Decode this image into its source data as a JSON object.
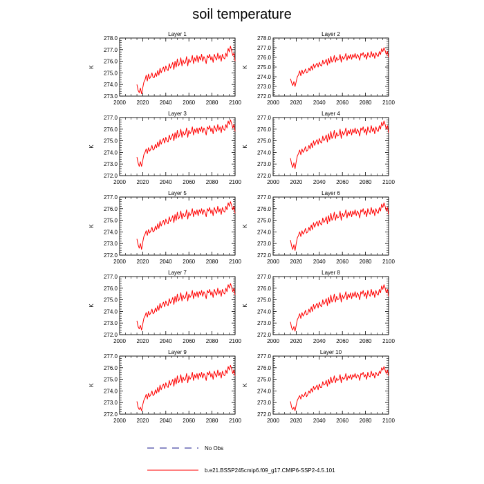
{
  "chart_data": {
    "type": "line",
    "title": "soil temperature",
    "ylabel": "K",
    "xlim": [
      2000,
      2100
    ],
    "xticks": [
      2000,
      2020,
      2040,
      2060,
      2080,
      2100
    ],
    "x": [
      2015,
      2016,
      2017,
      2018,
      2019,
      2020,
      2021,
      2022,
      2023,
      2024,
      2025,
      2026,
      2027,
      2028,
      2029,
      2030,
      2031,
      2032,
      2033,
      2034,
      2035,
      2036,
      2037,
      2038,
      2039,
      2040,
      2041,
      2042,
      2043,
      2044,
      2045,
      2046,
      2047,
      2048,
      2049,
      2050,
      2051,
      2052,
      2053,
      2054,
      2055,
      2056,
      2057,
      2058,
      2059,
      2060,
      2061,
      2062,
      2063,
      2064,
      2065,
      2066,
      2067,
      2068,
      2069,
      2070,
      2071,
      2072,
      2073,
      2074,
      2075,
      2076,
      2077,
      2078,
      2079,
      2080,
      2081,
      2082,
      2083,
      2084,
      2085,
      2086,
      2087,
      2088,
      2089,
      2090,
      2091,
      2092,
      2093,
      2094,
      2095,
      2096,
      2097,
      2098,
      2099,
      2100
    ],
    "legend": [
      {
        "label": "No Obs",
        "style": "dashed",
        "color": "#1a1a8c"
      },
      {
        "label": "b.e21.BSSP245cmip6.f09_g17.CMIP6-SSP2-4.5.101",
        "style": "solid",
        "color": "#ff0000"
      }
    ],
    "panels": [
      {
        "name": "Layer 1",
        "ylim": [
          273.0,
          278.0
        ],
        "yticks": [
          273.0,
          274.0,
          275.0,
          276.0,
          277.0,
          278.0
        ],
        "values": [
          274.0,
          273.5,
          273.3,
          273.7,
          273.2,
          273.7,
          274.2,
          274.4,
          274.8,
          274.3,
          274.9,
          274.5,
          274.7,
          275.0,
          274.6,
          274.6,
          275.0,
          274.7,
          275.2,
          274.8,
          275.4,
          275.0,
          275.3,
          275.5,
          275.1,
          275.6,
          275.3,
          275.2,
          275.8,
          275.4,
          275.6,
          275.9,
          275.3,
          276.0,
          275.5,
          276.2,
          275.6,
          275.8,
          276.3,
          275.6,
          276.1,
          275.8,
          275.9,
          276.4,
          275.6,
          276.2,
          275.9,
          276.1,
          276.5,
          275.8,
          276.3,
          276.0,
          276.5,
          275.9,
          276.4,
          276.1,
          276.6,
          276.0,
          276.4,
          276.2,
          275.8,
          276.5,
          276.3,
          276.6,
          276.1,
          276.4,
          275.9,
          276.6,
          276.3,
          276.1,
          276.7,
          276.2,
          276.5,
          276.0,
          276.6,
          276.3,
          276.2,
          276.7,
          276.4,
          277.1,
          276.8,
          277.3,
          276.9,
          276.5,
          276.7,
          276.0
        ]
      },
      {
        "name": "Layer 2",
        "ylim": [
          272.0,
          278.0
        ],
        "yticks": [
          272.0,
          273.0,
          274.0,
          275.0,
          276.0,
          277.0,
          278.0
        ],
        "values": [
          273.8,
          273.4,
          273.1,
          273.5,
          273.0,
          273.5,
          274.0,
          274.2,
          274.6,
          274.1,
          274.7,
          274.3,
          274.5,
          274.8,
          274.4,
          274.5,
          274.9,
          274.6,
          275.1,
          274.7,
          275.3,
          274.9,
          275.2,
          275.4,
          275.0,
          275.5,
          275.2,
          275.1,
          275.7,
          275.3,
          275.5,
          275.8,
          275.2,
          275.9,
          275.4,
          276.1,
          275.5,
          275.7,
          276.2,
          275.5,
          276.0,
          275.7,
          275.8,
          276.3,
          275.5,
          276.1,
          275.8,
          276.0,
          276.4,
          275.7,
          276.2,
          275.9,
          276.3,
          275.8,
          276.3,
          276.0,
          276.4,
          275.9,
          276.3,
          276.1,
          275.7,
          276.4,
          276.2,
          276.5,
          276.0,
          276.3,
          275.8,
          276.5,
          276.2,
          276.0,
          276.6,
          276.1,
          276.4,
          275.9,
          276.5,
          276.2,
          276.1,
          276.6,
          276.3,
          276.9,
          276.6,
          277.0,
          276.7,
          276.3,
          276.6,
          276.0
        ]
      },
      {
        "name": "Layer 3",
        "ylim": [
          272.0,
          277.0
        ],
        "yticks": [
          272.0,
          273.0,
          274.0,
          275.0,
          276.0,
          277.0
        ],
        "values": [
          273.6,
          273.1,
          272.8,
          273.2,
          272.8,
          273.3,
          273.8,
          274.0,
          274.3,
          273.9,
          274.4,
          274.1,
          274.3,
          274.6,
          274.2,
          274.3,
          274.7,
          274.4,
          274.9,
          274.5,
          275.1,
          274.7,
          275.0,
          275.2,
          274.8,
          275.3,
          275.0,
          274.9,
          275.5,
          275.1,
          275.3,
          275.6,
          275.0,
          275.7,
          275.2,
          275.9,
          275.3,
          275.5,
          276.0,
          275.3,
          275.8,
          275.5,
          275.6,
          276.1,
          275.3,
          275.9,
          275.6,
          275.8,
          276.2,
          275.5,
          276.0,
          275.7,
          276.1,
          275.6,
          276.1,
          275.8,
          276.2,
          275.7,
          276.1,
          275.9,
          275.5,
          276.2,
          276.0,
          276.3,
          275.8,
          276.1,
          275.6,
          276.3,
          276.0,
          275.8,
          276.4,
          275.9,
          276.2,
          275.7,
          276.3,
          276.0,
          275.9,
          276.4,
          276.1,
          276.7,
          276.4,
          276.8,
          276.5,
          276.1,
          276.4,
          275.8
        ]
      },
      {
        "name": "Layer 4",
        "ylim": [
          272.0,
          277.0
        ],
        "yticks": [
          272.0,
          273.0,
          274.0,
          275.0,
          276.0,
          277.0
        ],
        "values": [
          273.5,
          273.0,
          272.7,
          273.1,
          272.6,
          273.2,
          273.7,
          273.9,
          274.2,
          273.8,
          274.3,
          274.0,
          274.2,
          274.5,
          274.1,
          274.2,
          274.6,
          274.3,
          274.8,
          274.4,
          275.0,
          274.6,
          274.9,
          275.1,
          274.7,
          275.2,
          274.9,
          274.8,
          275.4,
          275.0,
          275.2,
          275.5,
          274.9,
          275.6,
          275.1,
          275.8,
          275.2,
          275.4,
          275.9,
          275.2,
          275.7,
          275.4,
          275.5,
          276.0,
          275.2,
          275.8,
          275.5,
          275.7,
          276.1,
          275.4,
          275.9,
          275.6,
          276.0,
          275.5,
          276.0,
          275.7,
          276.1,
          275.6,
          276.0,
          275.8,
          275.4,
          276.1,
          275.9,
          276.2,
          275.7,
          276.0,
          275.5,
          276.2,
          275.9,
          275.7,
          276.3,
          275.8,
          276.1,
          275.6,
          276.2,
          275.9,
          275.8,
          276.3,
          276.0,
          276.6,
          276.3,
          276.7,
          276.4,
          276.0,
          276.3,
          275.7
        ]
      },
      {
        "name": "Layer 5",
        "ylim": [
          272.0,
          277.0
        ],
        "yticks": [
          272.0,
          273.0,
          274.0,
          275.0,
          276.0,
          277.0
        ],
        "values": [
          273.4,
          272.9,
          272.6,
          273.0,
          272.5,
          273.1,
          273.6,
          273.8,
          274.1,
          273.7,
          274.2,
          273.9,
          274.1,
          274.4,
          274.0,
          274.1,
          274.5,
          274.2,
          274.7,
          274.3,
          274.9,
          274.5,
          274.8,
          275.0,
          274.6,
          275.1,
          274.8,
          274.7,
          275.3,
          274.9,
          275.1,
          275.4,
          274.8,
          275.5,
          275.0,
          275.7,
          275.1,
          275.3,
          275.8,
          275.1,
          275.6,
          275.3,
          275.4,
          275.9,
          275.1,
          275.7,
          275.4,
          275.6,
          276.0,
          275.3,
          275.8,
          275.5,
          275.9,
          275.4,
          275.9,
          275.6,
          276.0,
          275.5,
          275.9,
          275.7,
          275.3,
          276.0,
          275.8,
          276.1,
          275.6,
          275.9,
          275.4,
          276.1,
          275.8,
          275.6,
          276.2,
          275.7,
          276.0,
          275.5,
          276.1,
          275.8,
          275.7,
          276.2,
          275.9,
          276.5,
          276.2,
          276.6,
          276.3,
          275.9,
          276.2,
          275.6
        ]
      },
      {
        "name": "Layer 6",
        "ylim": [
          272.0,
          277.0
        ],
        "yticks": [
          272.0,
          273.0,
          274.0,
          275.0,
          276.0,
          277.0
        ],
        "values": [
          273.3,
          272.8,
          272.5,
          272.9,
          272.4,
          273.0,
          273.5,
          273.7,
          274.0,
          273.6,
          274.1,
          273.8,
          274.0,
          274.3,
          273.9,
          274.0,
          274.4,
          274.1,
          274.6,
          274.2,
          274.8,
          274.4,
          274.7,
          274.9,
          274.5,
          275.0,
          274.7,
          274.6,
          275.2,
          274.8,
          275.0,
          275.3,
          274.7,
          275.4,
          274.9,
          275.6,
          275.0,
          275.2,
          275.7,
          275.0,
          275.5,
          275.2,
          275.3,
          275.8,
          275.0,
          275.6,
          275.3,
          275.5,
          275.9,
          275.2,
          275.7,
          275.4,
          275.8,
          275.3,
          275.8,
          275.5,
          275.9,
          275.4,
          275.8,
          275.6,
          275.2,
          275.9,
          275.7,
          276.0,
          275.5,
          275.8,
          275.3,
          276.0,
          275.7,
          275.5,
          276.1,
          275.6,
          275.9,
          275.4,
          276.0,
          275.7,
          275.6,
          276.1,
          275.8,
          276.4,
          276.1,
          276.5,
          276.2,
          275.8,
          276.1,
          275.5
        ]
      },
      {
        "name": "Layer 7",
        "ylim": [
          272.0,
          277.0
        ],
        "yticks": [
          272.0,
          273.0,
          274.0,
          275.0,
          276.0,
          277.0
        ],
        "values": [
          273.2,
          272.7,
          272.5,
          272.8,
          272.4,
          272.9,
          273.4,
          273.6,
          273.9,
          273.5,
          274.0,
          273.7,
          273.9,
          274.2,
          273.8,
          273.9,
          274.3,
          274.0,
          274.5,
          274.1,
          274.7,
          274.3,
          274.6,
          274.8,
          274.4,
          274.9,
          274.6,
          274.5,
          275.1,
          274.7,
          274.9,
          275.2,
          274.6,
          275.3,
          274.8,
          275.5,
          274.9,
          275.1,
          275.6,
          274.9,
          275.4,
          275.1,
          275.2,
          275.7,
          274.9,
          275.5,
          275.2,
          275.4,
          275.8,
          275.1,
          275.6,
          275.3,
          275.7,
          275.2,
          275.7,
          275.4,
          275.8,
          275.3,
          275.7,
          275.5,
          275.1,
          275.8,
          275.6,
          275.9,
          275.4,
          275.7,
          275.2,
          275.9,
          275.6,
          275.4,
          276.0,
          275.5,
          275.8,
          275.3,
          275.9,
          275.6,
          275.5,
          276.0,
          275.7,
          276.3,
          276.0,
          276.4,
          276.1,
          275.7,
          276.0,
          275.4
        ]
      },
      {
        "name": "Layer 8",
        "ylim": [
          272.0,
          277.0
        ],
        "yticks": [
          272.0,
          273.0,
          274.0,
          275.0,
          276.0,
          277.0
        ],
        "values": [
          273.1,
          272.6,
          272.4,
          272.7,
          272.3,
          272.8,
          273.3,
          273.5,
          273.8,
          273.4,
          273.9,
          273.6,
          273.8,
          274.1,
          273.7,
          273.8,
          274.2,
          273.9,
          274.4,
          274.0,
          274.6,
          274.2,
          274.5,
          274.7,
          274.3,
          274.8,
          274.5,
          274.4,
          275.0,
          274.6,
          274.8,
          275.1,
          274.5,
          275.2,
          274.7,
          275.4,
          274.8,
          275.0,
          275.5,
          274.8,
          275.3,
          275.0,
          275.1,
          275.6,
          274.8,
          275.4,
          275.1,
          275.3,
          275.7,
          275.0,
          275.5,
          275.2,
          275.6,
          275.1,
          275.6,
          275.3,
          275.7,
          275.2,
          275.6,
          275.4,
          275.0,
          275.7,
          275.5,
          275.8,
          275.3,
          275.6,
          275.1,
          275.8,
          275.5,
          275.3,
          275.9,
          275.4,
          275.7,
          275.2,
          275.8,
          275.5,
          275.4,
          275.9,
          275.6,
          276.2,
          275.9,
          276.3,
          276.0,
          275.6,
          275.9,
          275.3
        ]
      },
      {
        "name": "Layer 9",
        "ylim": [
          272.0,
          277.0
        ],
        "yticks": [
          272.0,
          273.0,
          274.0,
          275.0,
          276.0,
          277.0
        ],
        "values": [
          273.1,
          272.6,
          272.4,
          272.6,
          272.3,
          272.8,
          273.2,
          273.4,
          273.7,
          273.3,
          273.8,
          273.5,
          273.7,
          274.0,
          273.6,
          273.7,
          274.1,
          273.8,
          274.3,
          273.9,
          274.5,
          274.1,
          274.4,
          274.6,
          274.2,
          274.7,
          274.4,
          274.3,
          274.9,
          274.5,
          274.7,
          275.0,
          274.4,
          275.1,
          274.6,
          275.3,
          274.7,
          274.9,
          275.4,
          274.7,
          275.2,
          274.9,
          275.0,
          275.5,
          274.7,
          275.3,
          275.0,
          275.2,
          275.6,
          274.9,
          275.4,
          275.1,
          275.5,
          275.0,
          275.5,
          275.2,
          275.6,
          275.1,
          275.5,
          275.3,
          274.9,
          275.6,
          275.4,
          275.7,
          275.2,
          275.5,
          275.0,
          275.7,
          275.4,
          275.2,
          275.8,
          275.3,
          275.6,
          275.1,
          275.7,
          275.4,
          275.3,
          275.8,
          275.5,
          276.1,
          275.8,
          276.2,
          275.9,
          275.5,
          275.8,
          275.3
        ]
      },
      {
        "name": "Layer 10",
        "ylim": [
          272.0,
          277.0
        ],
        "yticks": [
          272.0,
          273.0,
          274.0,
          275.0,
          276.0,
          277.0
        ],
        "values": [
          273.1,
          272.6,
          272.4,
          272.6,
          272.3,
          272.8,
          273.2,
          273.4,
          273.6,
          273.3,
          273.7,
          273.5,
          273.6,
          273.9,
          273.5,
          273.7,
          274.0,
          273.8,
          274.2,
          273.9,
          274.4,
          274.1,
          274.3,
          274.5,
          274.1,
          274.6,
          274.3,
          274.3,
          274.8,
          274.5,
          274.6,
          274.9,
          274.4,
          275.0,
          274.6,
          275.2,
          274.7,
          274.9,
          275.3,
          274.7,
          275.1,
          274.9,
          275.0,
          275.4,
          274.7,
          275.2,
          275.0,
          275.1,
          275.5,
          274.9,
          275.3,
          275.1,
          275.4,
          275.0,
          275.4,
          275.2,
          275.5,
          275.1,
          275.4,
          275.3,
          274.9,
          275.5,
          275.4,
          275.6,
          275.2,
          275.4,
          275.0,
          275.6,
          275.3,
          275.2,
          275.7,
          275.3,
          275.5,
          275.1,
          275.6,
          275.4,
          275.3,
          275.7,
          275.5,
          276.0,
          275.8,
          276.1,
          275.8,
          275.5,
          275.8,
          275.3
        ]
      }
    ]
  }
}
